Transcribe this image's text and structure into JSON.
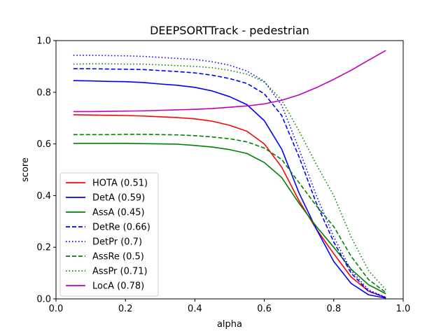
{
  "chart_data": {
    "type": "line",
    "title": "DEEPSORTTrack - pedestrian",
    "xlabel": "alpha",
    "ylabel": "score",
    "xlim": [
      0.0,
      1.0
    ],
    "ylim": [
      0.0,
      1.0
    ],
    "xticks": [
      "0.0",
      "0.2",
      "0.4",
      "0.6",
      "0.8",
      "1.0"
    ],
    "yticks": [
      "0.0",
      "0.2",
      "0.4",
      "0.6",
      "0.8",
      "1.0"
    ],
    "grid": false,
    "legend_position": "lower-left",
    "x": [
      0.05,
      0.1,
      0.15,
      0.2,
      0.25,
      0.3,
      0.35,
      0.4,
      0.45,
      0.5,
      0.55,
      0.6,
      0.65,
      0.7,
      0.75,
      0.8,
      0.85,
      0.9,
      0.95
    ],
    "series": [
      {
        "name": "HOTA (0.51)",
        "color": "#ff0000",
        "dash": "solid",
        "values": [
          0.713,
          0.712,
          0.711,
          0.71,
          0.708,
          0.705,
          0.702,
          0.697,
          0.688,
          0.672,
          0.649,
          0.6,
          0.51,
          0.38,
          0.27,
          0.175,
          0.085,
          0.03,
          0.005
        ]
      },
      {
        "name": "DetA (0.59)",
        "color": "#0000ff",
        "dash": "solid",
        "values": [
          0.845,
          0.844,
          0.842,
          0.841,
          0.838,
          0.832,
          0.827,
          0.819,
          0.805,
          0.783,
          0.752,
          0.69,
          0.58,
          0.41,
          0.27,
          0.145,
          0.06,
          0.016,
          0.003
        ]
      },
      {
        "name": "AssA (0.45)",
        "color": "#008000",
        "dash": "solid",
        "values": [
          0.602,
          0.602,
          0.602,
          0.602,
          0.601,
          0.6,
          0.599,
          0.594,
          0.588,
          0.578,
          0.563,
          0.528,
          0.47,
          0.37,
          0.28,
          0.2,
          0.115,
          0.055,
          0.02
        ]
      },
      {
        "name": "DetRe (0.66)",
        "color": "#0000ff",
        "dash": "dashed",
        "values": [
          0.891,
          0.891,
          0.89,
          0.889,
          0.888,
          0.884,
          0.88,
          0.875,
          0.866,
          0.853,
          0.834,
          0.794,
          0.71,
          0.55,
          0.37,
          0.22,
          0.1,
          0.03,
          0.005
        ]
      },
      {
        "name": "DetPr (0.7)",
        "color": "#0000ff",
        "dash": "dotted",
        "values": [
          0.943,
          0.943,
          0.942,
          0.941,
          0.939,
          0.935,
          0.931,
          0.927,
          0.918,
          0.905,
          0.882,
          0.842,
          0.75,
          0.58,
          0.4,
          0.24,
          0.11,
          0.035,
          0.006
        ]
      },
      {
        "name": "AssRe (0.5)",
        "color": "#008000",
        "dash": "dashed",
        "values": [
          0.636,
          0.636,
          0.636,
          0.637,
          0.637,
          0.636,
          0.635,
          0.632,
          0.627,
          0.62,
          0.608,
          0.584,
          0.54,
          0.45,
          0.36,
          0.28,
          0.165,
          0.075,
          0.025
        ]
      },
      {
        "name": "AssPr (0.71)",
        "color": "#008000",
        "dash": "dotted",
        "values": [
          0.909,
          0.91,
          0.91,
          0.909,
          0.909,
          0.906,
          0.903,
          0.9,
          0.895,
          0.885,
          0.87,
          0.84,
          0.77,
          0.65,
          0.52,
          0.4,
          0.24,
          0.11,
          0.035
        ]
      },
      {
        "name": "LocA (0.78)",
        "color": "#bf00bf",
        "dash": "solid",
        "values": [
          0.725,
          0.725,
          0.726,
          0.727,
          0.728,
          0.73,
          0.732,
          0.734,
          0.737,
          0.742,
          0.747,
          0.755,
          0.769,
          0.79,
          0.818,
          0.85,
          0.885,
          0.924,
          0.962
        ]
      }
    ]
  }
}
